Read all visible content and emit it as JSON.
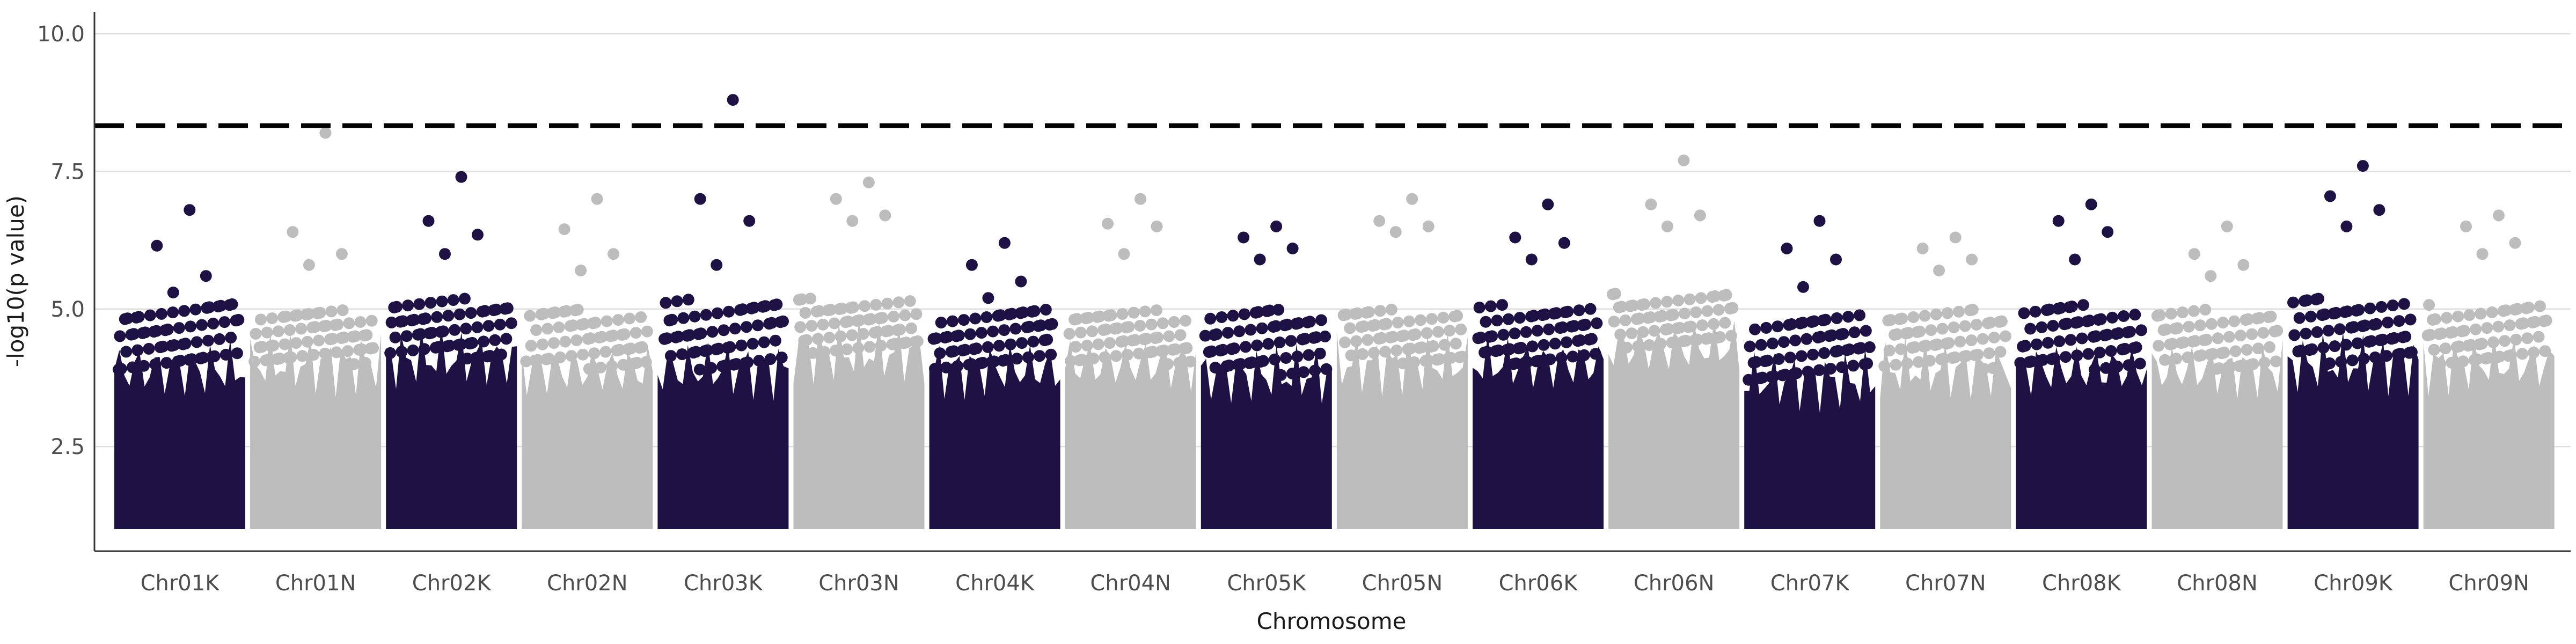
{
  "chart_data": {
    "type": "scatter",
    "subtype": "manhattan",
    "title": "",
    "xlabel": "Chromosome",
    "ylabel": "-log10(p value)",
    "ylim": [
      0.6,
      10.4
    ],
    "yticks": [
      2.5,
      5.0,
      7.5,
      10.0
    ],
    "ytick_labels": [
      "2.5",
      "5.0",
      "7.5",
      "10.0"
    ],
    "grid": {
      "horizontal": true,
      "vertical": false
    },
    "threshold": {
      "value": 8.33,
      "style": "dashed",
      "color": "#000000"
    },
    "colors": {
      "dark": "#1e1144",
      "light": "#bdbdbd"
    },
    "categories": [
      "Chr01K",
      "Chr01N",
      "Chr02K",
      "Chr02N",
      "Chr03K",
      "Chr03N",
      "Chr04K",
      "Chr04N",
      "Chr05K",
      "Chr05N",
      "Chr06K",
      "Chr06N",
      "Chr07K",
      "Chr07N",
      "Chr08K",
      "Chr08N",
      "Chr09K",
      "Chr09N"
    ],
    "series": [
      {
        "values": [
          6.8,
          8.2,
          7.4,
          7.0,
          8.8,
          7.3,
          6.2,
          7.0,
          6.5,
          7.0,
          6.9,
          7.7,
          6.6,
          6.3,
          6.9,
          6.5,
          7.6,
          6.7
        ]
      },
      {
        "values": [
          6.15,
          6.4,
          6.6,
          6.45,
          7.0,
          7.0,
          5.8,
          6.55,
          6.3,
          6.6,
          6.3,
          6.9,
          6.1,
          6.1,
          6.6,
          6.0,
          7.05,
          6.5
        ]
      },
      {
        "values": [
          5.6,
          6.0,
          6.35,
          6.0,
          6.6,
          6.7,
          5.5,
          6.5,
          6.1,
          6.5,
          6.2,
          6.7,
          5.9,
          5.9,
          6.4,
          5.8,
          6.8,
          6.2
        ]
      },
      {
        "values": [
          5.3,
          5.8,
          6.0,
          5.7,
          5.8,
          6.6,
          5.2,
          6.0,
          5.9,
          6.4,
          5.9,
          6.5,
          5.4,
          5.7,
          5.9,
          5.6,
          6.5,
          6.0
        ]
      }
    ],
    "bands": {
      "min": 1.0,
      "base_top": [
        5.1,
        5.0,
        5.2,
        5.0,
        5.2,
        5.2,
        5.0,
        5.0,
        5.0,
        5.0,
        5.1,
        5.3,
        4.9,
        5.0,
        5.1,
        5.0,
        5.2,
        5.1
      ],
      "dense_top": [
        3.9,
        4.0,
        4.1,
        3.9,
        3.9,
        4.2,
        3.9,
        4.0,
        3.8,
        4.0,
        4.0,
        4.3,
        3.7,
        3.9,
        3.9,
        3.9,
        4.0,
        4.0
      ]
    }
  }
}
